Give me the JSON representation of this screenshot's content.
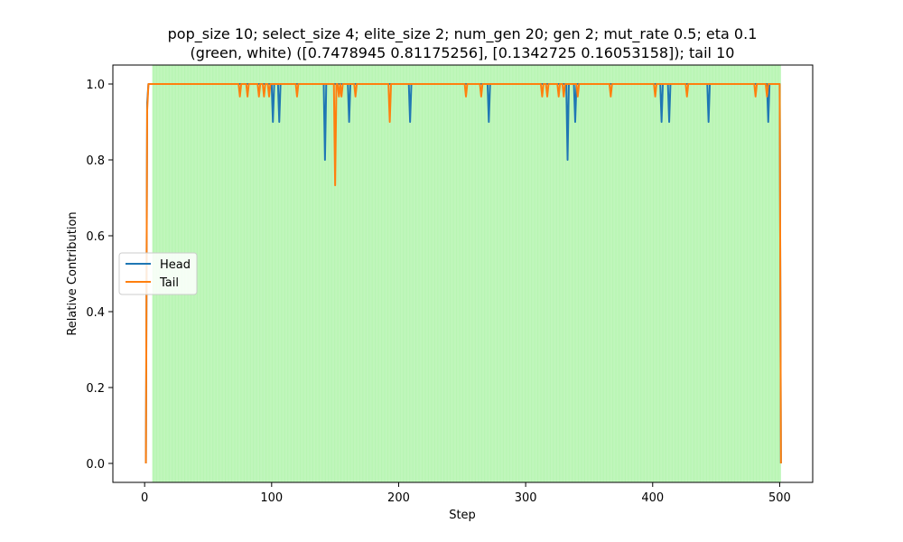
{
  "chart_data": {
    "type": "line",
    "title_lines": [
      "pop_size 10; select_size 4; elite_size 2; num_gen 20; gen 2; mut_rate 0.5; eta 0.1",
      "(green, white) ([0.7478945  0.81175256], [0.1342725  0.16053158]); tail 10"
    ],
    "xlabel": "Step",
    "ylabel": "Relative Contribution",
    "xlim": [
      -25,
      526
    ],
    "ylim": [
      -0.05,
      1.05
    ],
    "xticks": [
      0,
      100,
      200,
      300,
      400,
      500
    ],
    "yticks": [
      0.0,
      0.2,
      0.4,
      0.6,
      0.8,
      1.0
    ],
    "ytick_labels": [
      "0.0",
      "0.2",
      "0.4",
      "0.6",
      "0.8",
      "1.0"
    ],
    "grid": false,
    "legend_position": "center-left",
    "shaded_region": {
      "x_start": 6,
      "x_end": 501,
      "color": "#b6f5b1"
    },
    "series": [
      {
        "name": "Head",
        "color": "#1f77b4",
        "x": [
          1,
          2,
          3,
          100,
          101,
          102,
          105,
          106,
          107,
          141,
          142,
          143,
          160,
          161,
          162,
          208,
          209,
          210,
          270,
          271,
          272,
          332,
          333,
          334,
          338,
          339,
          340,
          406,
          407,
          408,
          412,
          413,
          414,
          443,
          444,
          445,
          490,
          491,
          492,
          500,
          501
        ],
        "y": [
          0.0,
          0.95,
          1.0,
          1.0,
          0.9,
          1.0,
          1.0,
          0.9,
          1.0,
          1.0,
          0.8,
          1.0,
          1.0,
          0.9,
          1.0,
          1.0,
          0.9,
          1.0,
          1.0,
          0.9,
          1.0,
          1.0,
          0.8,
          1.0,
          1.0,
          0.9,
          1.0,
          1.0,
          0.9,
          1.0,
          1.0,
          0.9,
          1.0,
          1.0,
          0.9,
          1.0,
          1.0,
          0.9,
          1.0,
          1.0,
          0.0
        ]
      },
      {
        "name": "Tail",
        "color": "#ff7f0e",
        "x": [
          1,
          2,
          3,
          74,
          75,
          76,
          80,
          81,
          82,
          89,
          90,
          91,
          93,
          94,
          95,
          97,
          98,
          99,
          119,
          120,
          121,
          149,
          150,
          151,
          152,
          153,
          154,
          155,
          156,
          165,
          166,
          167,
          192,
          193,
          194,
          252,
          253,
          254,
          264,
          265,
          266,
          312,
          313,
          314,
          316,
          317,
          318,
          325,
          326,
          327,
          329,
          330,
          331,
          340,
          341,
          342,
          366,
          367,
          368,
          401,
          402,
          403,
          426,
          427,
          428,
          480,
          481,
          482,
          489,
          490,
          491,
          500,
          501
        ],
        "y": [
          0.0,
          0.93,
          1.0,
          1.0,
          0.967,
          1.0,
          1.0,
          0.967,
          1.0,
          1.0,
          0.967,
          1.0,
          1.0,
          0.967,
          1.0,
          1.0,
          0.967,
          1.0,
          1.0,
          0.967,
          1.0,
          1.0,
          0.733,
          1.0,
          1.0,
          0.967,
          1.0,
          0.967,
          1.0,
          1.0,
          0.967,
          1.0,
          1.0,
          0.9,
          1.0,
          1.0,
          0.967,
          1.0,
          1.0,
          0.967,
          1.0,
          1.0,
          0.967,
          1.0,
          1.0,
          0.967,
          1.0,
          1.0,
          0.967,
          1.0,
          1.0,
          0.967,
          1.0,
          1.0,
          0.967,
          1.0,
          1.0,
          0.967,
          1.0,
          1.0,
          0.967,
          1.0,
          1.0,
          0.967,
          1.0,
          1.0,
          0.967,
          1.0,
          1.0,
          0.967,
          1.0,
          1.0,
          0.0
        ]
      }
    ]
  }
}
